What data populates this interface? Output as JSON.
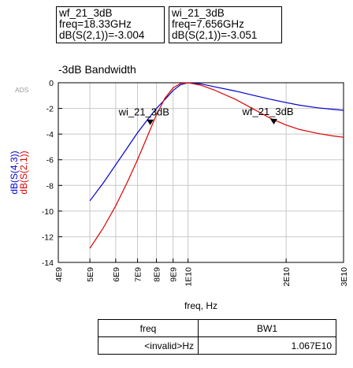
{
  "markers": [
    {
      "name": "wf_21_3dB",
      "freq": "freq=18.33GHz",
      "value": "dB(S(2,1))=-3.004"
    },
    {
      "name": "wi_21_3dB",
      "freq": "freq=7.656GHz",
      "value": "dB(S(2,1))=-3.051"
    }
  ],
  "ads_label": "ADS",
  "table": {
    "headers": [
      "freq",
      "BW1"
    ],
    "rows": [
      [
        "<invalid>Hz",
        "1.067E10"
      ]
    ]
  },
  "chart_data": {
    "type": "line",
    "title": "-3dB Bandwidth",
    "xlabel": "freq, Hz",
    "ylabel": [
      "dB(S(4,3))",
      "dB(S(2,1))"
    ],
    "x_scale": "log",
    "xlim": [
      4000000000.0,
      30000000000.0
    ],
    "ylim": [
      -14,
      0
    ],
    "x_ticks": [
      4000000000.0,
      5000000000.0,
      6000000000.0,
      7000000000.0,
      8000000000.0,
      9000000000.0,
      10000000000.0,
      20000000000.0,
      30000000000.0
    ],
    "x_tick_labels": [
      "4E9",
      "5E9",
      "6E9",
      "7E9",
      "8E9",
      "9E9",
      "1E10",
      "2E10",
      "3E10"
    ],
    "y_ticks": [
      0,
      -2,
      -4,
      -6,
      -8,
      -10,
      -12,
      -14
    ],
    "y_tick_labels": [
      "0",
      "-2",
      "-4",
      "-6",
      "-8",
      "-10",
      "-12",
      "-14"
    ],
    "grid": true,
    "colors": {
      "s43": "#0000cc",
      "s21": "#dd0000",
      "grid": "#c8c8c8",
      "axis": "#000000"
    },
    "series": [
      {
        "name": "dB(S(4,3))",
        "x": [
          5000000000.0,
          5500000000.0,
          6000000000.0,
          6500000000.0,
          7000000000.0,
          7500000000.0,
          8000000000.0,
          8500000000.0,
          9000000000.0,
          9500000000.0,
          10000000000.0,
          11000000000.0,
          12000000000.0,
          14000000000.0,
          16000000000.0,
          18000000000.0,
          20000000000.0,
          22000000000.0,
          25000000000.0,
          28000000000.0,
          30000000000.0
        ],
        "y": [
          -9.2,
          -7.8,
          -6.4,
          -5.1,
          -3.9,
          -2.9,
          -2.0,
          -1.3,
          -0.6,
          -0.15,
          0,
          -0.1,
          -0.3,
          -0.65,
          -1.0,
          -1.3,
          -1.55,
          -1.75,
          -1.95,
          -2.08,
          -2.15
        ]
      },
      {
        "name": "dB(S(2,1))",
        "x": [
          5000000000.0,
          5500000000.0,
          6000000000.0,
          6500000000.0,
          7000000000.0,
          7500000000.0,
          8000000000.0,
          8500000000.0,
          9000000000.0,
          9500000000.0,
          10000000000.0,
          11000000000.0,
          12000000000.0,
          14000000000.0,
          16000000000.0,
          18000000000.0,
          20000000000.0,
          22000000000.0,
          25000000000.0,
          28000000000.0,
          30000000000.0
        ],
        "y": [
          -12.9,
          -11.3,
          -9.6,
          -7.8,
          -6.0,
          -4.2,
          -2.5,
          -1.2,
          -0.4,
          -0.05,
          0,
          -0.2,
          -0.55,
          -1.3,
          -2.1,
          -2.8,
          -3.3,
          -3.65,
          -3.95,
          -4.15,
          -4.25
        ]
      }
    ],
    "marker_points": [
      {
        "label": "wi_21_3dB",
        "x": 7656000000.0,
        "y": -3.051
      },
      {
        "label": "wf_21_3dB",
        "x": 18330000000.0,
        "y": -3.004
      }
    ]
  }
}
